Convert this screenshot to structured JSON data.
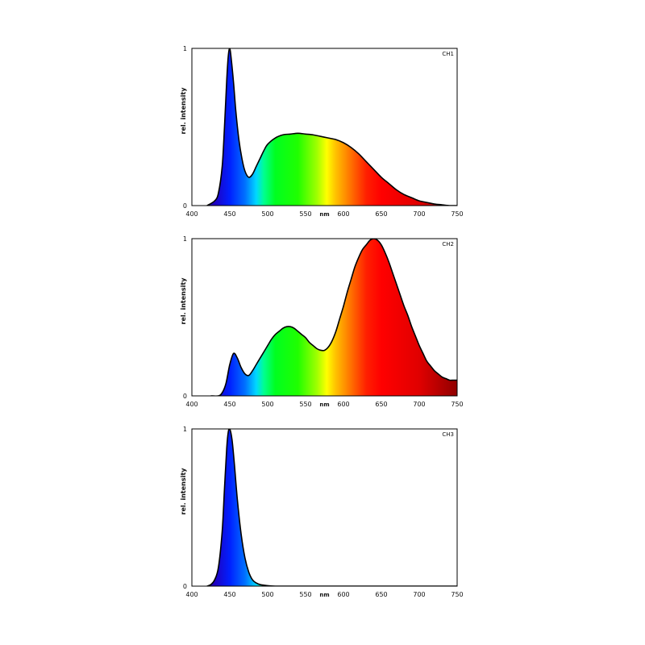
{
  "chart_data": [
    {
      "type": "area",
      "channel_label": "CH1",
      "xlabel": "nm",
      "ylabel": "rel. intensity",
      "xlim": [
        400,
        750
      ],
      "ylim": [
        0,
        1
      ],
      "x_ticks": [
        "400",
        "450",
        "500",
        "550",
        "600",
        "650",
        "700",
        "750"
      ],
      "y_ticks": [
        "0",
        "1"
      ],
      "fill": "visible-spectrum gradient",
      "x": [
        420,
        430,
        435,
        440,
        443,
        446,
        448,
        450,
        452,
        455,
        458,
        462,
        466,
        470,
        475,
        480,
        485,
        490,
        495,
        500,
        510,
        520,
        530,
        540,
        550,
        560,
        570,
        580,
        590,
        600,
        610,
        620,
        630,
        640,
        650,
        660,
        670,
        680,
        690,
        700,
        710,
        720,
        730,
        740,
        750
      ],
      "y": [
        0.0,
        0.03,
        0.08,
        0.25,
        0.5,
        0.8,
        0.95,
        1.0,
        0.93,
        0.78,
        0.6,
        0.42,
        0.3,
        0.22,
        0.18,
        0.2,
        0.25,
        0.3,
        0.35,
        0.39,
        0.43,
        0.45,
        0.455,
        0.46,
        0.455,
        0.45,
        0.44,
        0.43,
        0.42,
        0.4,
        0.37,
        0.33,
        0.28,
        0.23,
        0.18,
        0.14,
        0.1,
        0.07,
        0.05,
        0.03,
        0.02,
        0.01,
        0.005,
        0.0,
        0.0
      ]
    },
    {
      "type": "area",
      "channel_label": "CH2",
      "xlabel": "nm",
      "ylabel": "rel. intensity",
      "xlim": [
        400,
        750
      ],
      "ylim": [
        0,
        1
      ],
      "x_ticks": [
        "400",
        "450",
        "500",
        "550",
        "600",
        "650",
        "700",
        "750"
      ],
      "y_ticks": [
        "0",
        "1"
      ],
      "fill": "visible-spectrum gradient",
      "x": [
        425,
        435,
        440,
        445,
        450,
        455,
        460,
        465,
        470,
        475,
        480,
        485,
        490,
        495,
        500,
        505,
        510,
        515,
        520,
        525,
        530,
        535,
        540,
        545,
        550,
        555,
        560,
        565,
        570,
        575,
        580,
        585,
        590,
        595,
        600,
        605,
        610,
        615,
        620,
        625,
        630,
        635,
        640,
        645,
        650,
        655,
        660,
        665,
        670,
        675,
        680,
        685,
        690,
        695,
        700,
        705,
        710,
        715,
        720,
        725,
        730,
        735,
        740,
        745,
        750
      ],
      "y": [
        0.0,
        0.0,
        0.02,
        0.08,
        0.2,
        0.27,
        0.24,
        0.18,
        0.14,
        0.13,
        0.16,
        0.2,
        0.24,
        0.28,
        0.32,
        0.36,
        0.39,
        0.41,
        0.43,
        0.44,
        0.44,
        0.43,
        0.41,
        0.39,
        0.37,
        0.34,
        0.32,
        0.3,
        0.29,
        0.29,
        0.31,
        0.35,
        0.41,
        0.49,
        0.57,
        0.66,
        0.74,
        0.82,
        0.88,
        0.93,
        0.96,
        0.99,
        1.0,
        0.99,
        0.96,
        0.91,
        0.85,
        0.78,
        0.71,
        0.64,
        0.57,
        0.51,
        0.44,
        0.38,
        0.32,
        0.27,
        0.22,
        0.19,
        0.16,
        0.14,
        0.12,
        0.11,
        0.1,
        0.1,
        0.1
      ]
    },
    {
      "type": "area",
      "channel_label": "CH3",
      "xlabel": "nm",
      "ylabel": "rel. intensity",
      "xlim": [
        400,
        750
      ],
      "ylim": [
        0,
        1
      ],
      "x_ticks": [
        "400",
        "450",
        "500",
        "550",
        "600",
        "650",
        "700",
        "750"
      ],
      "y_ticks": [
        "0",
        "1"
      ],
      "fill": "visible-spectrum gradient",
      "x": [
        420,
        425,
        430,
        435,
        440,
        443,
        446,
        448,
        450,
        453,
        456,
        460,
        465,
        470,
        475,
        480,
        485,
        490,
        500,
        510,
        520,
        750
      ],
      "y": [
        0.0,
        0.01,
        0.04,
        0.12,
        0.35,
        0.62,
        0.88,
        0.98,
        1.0,
        0.93,
        0.78,
        0.55,
        0.33,
        0.18,
        0.09,
        0.04,
        0.02,
        0.01,
        0.003,
        0.0,
        0.0,
        0.0
      ]
    }
  ]
}
